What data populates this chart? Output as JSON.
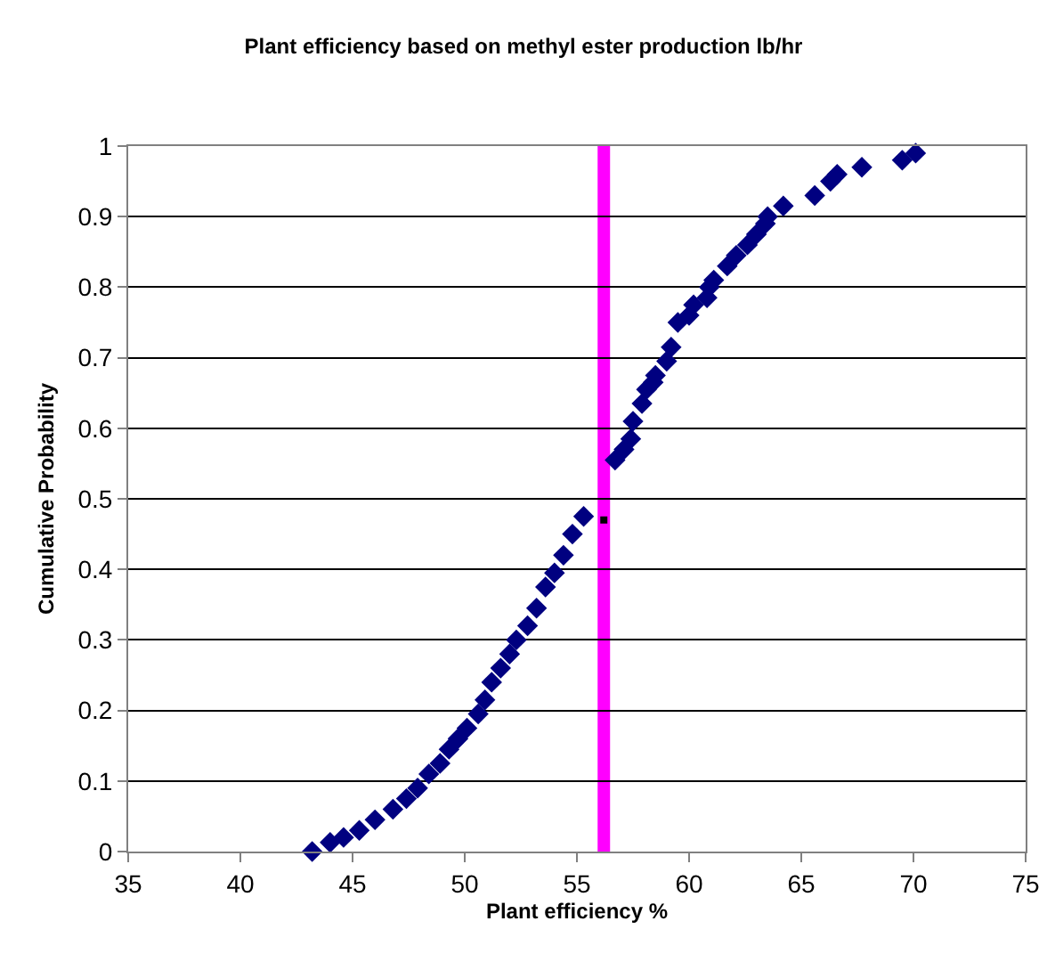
{
  "chart_data": {
    "type": "scatter",
    "title": "Plant efficiency based on methyl ester production lb/hr",
    "xlabel": "Plant efficiency %",
    "ylabel": "Cumulative Probability",
    "xlim": [
      35,
      75
    ],
    "xticks": [
      35,
      40,
      45,
      50,
      55,
      60,
      65,
      70,
      75
    ],
    "ylim": [
      0,
      1
    ],
    "yticks": [
      0,
      0.1,
      0.2,
      0.3,
      0.4,
      0.5,
      0.6,
      0.7,
      0.8,
      0.9,
      1
    ],
    "grid": "y",
    "marker": "diamond",
    "series": [
      {
        "color": "#000080",
        "x": [
          43.2,
          44.0,
          44.6,
          45.3,
          46.0,
          46.8,
          47.4,
          47.9,
          48.4,
          48.9,
          49.3,
          49.7,
          50.1,
          50.6,
          50.9,
          51.2,
          51.6,
          52.0,
          52.3,
          52.8,
          53.2,
          53.6,
          54.0,
          54.4,
          54.8,
          55.3,
          56.7,
          57.1,
          57.4,
          57.5,
          57.9,
          58.1,
          58.4,
          58.5,
          59.0,
          59.2,
          59.5,
          60.0,
          60.2,
          60.8,
          60.9,
          61.1,
          61.7,
          62.1,
          62.6,
          63.0,
          63.4,
          63.5,
          64.2,
          65.6,
          66.3,
          66.6,
          67.7,
          69.5,
          70.1
        ],
        "values": [
          0.0,
          0.013,
          0.02,
          0.03,
          0.045,
          0.06,
          0.075,
          0.09,
          0.11,
          0.125,
          0.145,
          0.16,
          0.175,
          0.195,
          0.215,
          0.24,
          0.26,
          0.28,
          0.3,
          0.32,
          0.345,
          0.375,
          0.395,
          0.42,
          0.45,
          0.475,
          0.555,
          0.57,
          0.585,
          0.61,
          0.635,
          0.655,
          0.665,
          0.675,
          0.695,
          0.715,
          0.75,
          0.76,
          0.775,
          0.785,
          0.8,
          0.81,
          0.83,
          0.845,
          0.86,
          0.875,
          0.89,
          0.9,
          0.915,
          0.93,
          0.95,
          0.96,
          0.97,
          0.98,
          0.99
        ]
      },
      {
        "color": "#000000",
        "marker": "square",
        "x": [
          56.2
        ],
        "values": [
          0.47
        ]
      }
    ],
    "ref_lines": [
      {
        "axis": "x",
        "value": 56.2,
        "color": "#ff00ff"
      }
    ]
  }
}
